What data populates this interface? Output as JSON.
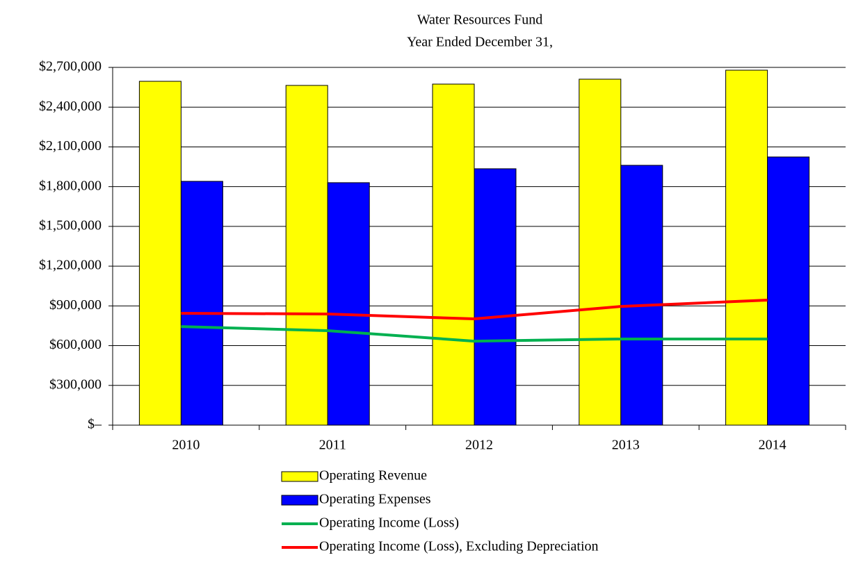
{
  "chart_data": {
    "type": "bar",
    "title": "Water Resources Fund",
    "subtitle": "Year Ended December 31,",
    "categories": [
      "2010",
      "2011",
      "2012",
      "2013",
      "2014"
    ],
    "series": [
      {
        "name": "Operating Revenue",
        "type": "bar",
        "color": "#ffff00",
        "values": [
          2595000,
          2564000,
          2574000,
          2611000,
          2679000
        ]
      },
      {
        "name": "Operating Expenses",
        "type": "bar",
        "color": "#0000ff",
        "values": [
          1840000,
          1830000,
          1935000,
          1961000,
          2024000
        ]
      },
      {
        "name": "Operating Income (Loss)",
        "type": "line",
        "color": "#00b050",
        "values": [
          744000,
          713000,
          634000,
          650000,
          650000
        ]
      },
      {
        "name": "Operating Income (Loss), Excluding Depreciation",
        "type": "line",
        "color": "#ff0000",
        "values": [
          844000,
          839000,
          802000,
          896000,
          944000
        ]
      }
    ],
    "ylim": [
      0,
      2700000
    ],
    "yticks": [
      {
        "value": 0,
        "label": "$–"
      },
      {
        "value": 300000,
        "label": "$300,000"
      },
      {
        "value": 600000,
        "label": "$600,000"
      },
      {
        "value": 900000,
        "label": "$900,000"
      },
      {
        "value": 1200000,
        "label": "$1,200,000"
      },
      {
        "value": 1500000,
        "label": "$1,500,000"
      },
      {
        "value": 1800000,
        "label": "$1,800,000"
      },
      {
        "value": 2100000,
        "label": "$2,100,000"
      },
      {
        "value": 2400000,
        "label": "$2,400,000"
      },
      {
        "value": 2700000,
        "label": "$2,700,000"
      }
    ],
    "grid": true,
    "legend": "bottom"
  }
}
